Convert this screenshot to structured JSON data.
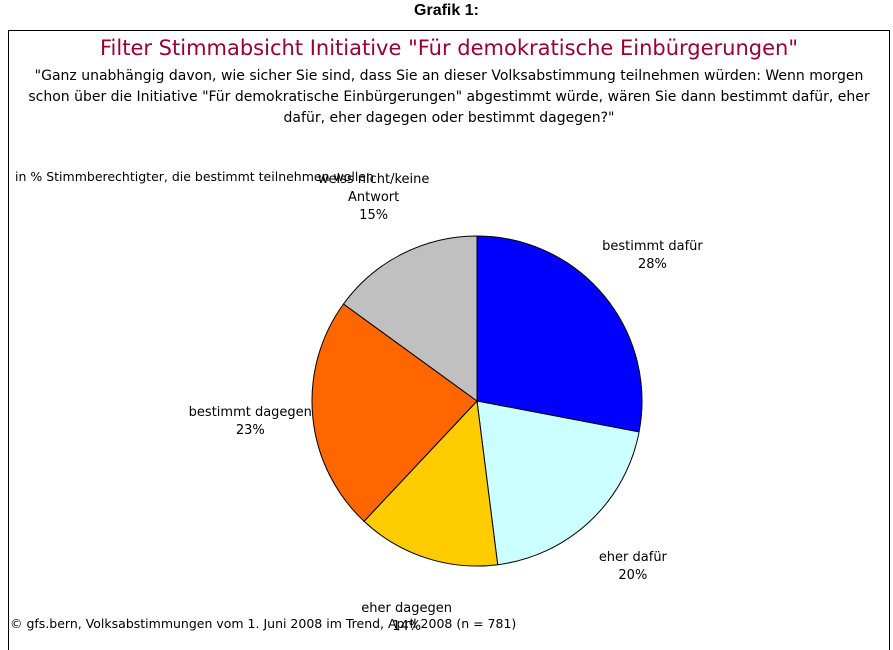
{
  "heading": "Grafik 1:",
  "chart_data": {
    "type": "pie",
    "title": "Filter Stimmabsicht Initiative \"Für demokratische Einbürgerungen\"",
    "question": "\"Ganz unabhängig davon, wie sicher Sie sind, dass Sie an dieser Volksabstimmung teilnehmen würden: Wenn morgen schon über die Initiative \"Für demokratische Einbürgerungen\" abgestimmt würde, wären Sie dann bestimmt dafür, eher dafür, eher dagegen oder bestimmt dagegen?\"",
    "subtitle": "in % Stimmberechtigter, die bestimmt teilnehmen wollen",
    "source": "© gfs.bern, Volksabstimmungen vom 1. Juni 2008 im Trend, April 2008 (n = 781)",
    "categories": [
      "bestimmt dafür",
      "eher dafür",
      "eher dagegen",
      "bestimmt dagegen",
      "weiss nicht/keine Antwort"
    ],
    "values": [
      28,
      20,
      14,
      23,
      15
    ],
    "value_labels": [
      "28%",
      "20%",
      "14%",
      "23%",
      "15%"
    ],
    "colors": [
      "#0000ff",
      "#ccffff",
      "#ffcc00",
      "#ff6600",
      "#c0c0c0"
    ]
  }
}
